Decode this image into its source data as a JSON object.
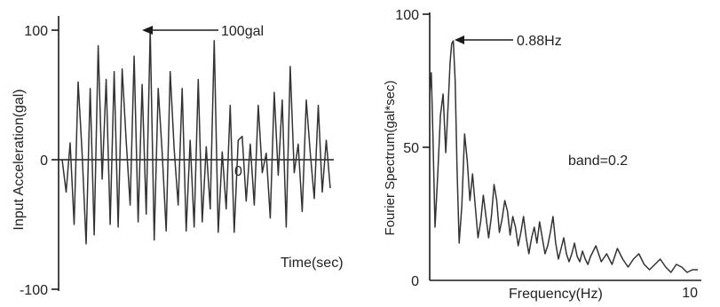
{
  "chart_data": [
    {
      "type": "line",
      "title": "",
      "xlabel": "Time(sec)",
      "ylabel": "Input Acceleration(gal)",
      "ylim": [
        -100,
        100
      ],
      "y_ticks": [
        "100",
        "0",
        "-100"
      ],
      "x_tick_labels": [
        "0"
      ],
      "annotations": [
        {
          "text": "100gal",
          "at_y": 100
        }
      ],
      "series": [
        {
          "values": [
            0,
            -25,
            13,
            -50,
            60,
            5,
            -65,
            55,
            -58,
            88,
            -15,
            62,
            -50,
            68,
            -52,
            70,
            15,
            -35,
            80,
            -48,
            58,
            -42,
            100,
            -62,
            55,
            5,
            -55,
            68,
            8,
            -35,
            55,
            -55,
            15,
            -52,
            62,
            -48,
            10,
            -38,
            92,
            -56,
            6,
            -38,
            42,
            -56,
            15,
            18,
            -32,
            12,
            -35,
            42,
            -10,
            5,
            -45,
            52,
            -12,
            46,
            -52,
            72,
            -10,
            12,
            -40,
            46,
            5,
            -30,
            42,
            -25,
            15,
            -22
          ]
        }
      ]
    },
    {
      "type": "line",
      "title": "",
      "xlabel": "Frequency(Hz)",
      "ylabel": "Fourier Spectrum(gal*sec)",
      "xlim": [
        0,
        10
      ],
      "ylim": [
        0,
        100
      ],
      "y_ticks": [
        "100",
        "50",
        "0"
      ],
      "x_tick_labels": [
        "0",
        "10"
      ],
      "annotations": [
        {
          "text": "0.88Hz",
          "x": 0.88
        },
        {
          "text": "band=0.2"
        }
      ],
      "series": [
        {
          "x": [
            0.0,
            0.06,
            0.12,
            0.2,
            0.3,
            0.4,
            0.5,
            0.6,
            0.7,
            0.76,
            0.82,
            0.88,
            0.95,
            1.02,
            1.1,
            1.2,
            1.3,
            1.4,
            1.5,
            1.6,
            1.7,
            1.8,
            1.9,
            2.0,
            2.1,
            2.2,
            2.3,
            2.4,
            2.5,
            2.6,
            2.7,
            2.8,
            2.9,
            3.0,
            3.1,
            3.2,
            3.3,
            3.4,
            3.5,
            3.6,
            3.7,
            3.8,
            3.9,
            4.0,
            4.1,
            4.2,
            4.3,
            4.4,
            4.5,
            4.6,
            4.7,
            4.8,
            4.9,
            5.0,
            5.1,
            5.2,
            5.3,
            5.4,
            5.5,
            5.6,
            5.7,
            5.8,
            5.9,
            6.0,
            6.2,
            6.4,
            6.6,
            6.8,
            7.0,
            7.2,
            7.4,
            7.6,
            7.8,
            8.0,
            8.2,
            8.4,
            8.6,
            8.8,
            9.0,
            9.2,
            9.4,
            9.6,
            9.8,
            10.0
          ],
          "values": [
            70,
            78,
            55,
            20,
            40,
            62,
            70,
            48,
            68,
            82,
            89,
            90,
            75,
            42,
            14,
            28,
            55,
            45,
            30,
            40,
            28,
            16,
            22,
            32,
            24,
            16,
            24,
            36,
            30,
            18,
            23,
            30,
            26,
            17,
            24,
            20,
            13,
            18,
            24,
            16,
            10,
            16,
            20,
            14,
            22,
            16,
            10,
            13,
            18,
            24,
            14,
            8,
            12,
            16,
            10,
            7,
            10,
            14,
            9,
            7,
            11,
            8,
            6,
            9,
            13,
            7,
            10,
            6,
            12,
            8,
            5,
            8,
            10,
            6,
            4,
            6,
            8,
            5,
            3,
            6,
            5,
            3,
            4,
            4
          ]
        }
      ]
    }
  ]
}
